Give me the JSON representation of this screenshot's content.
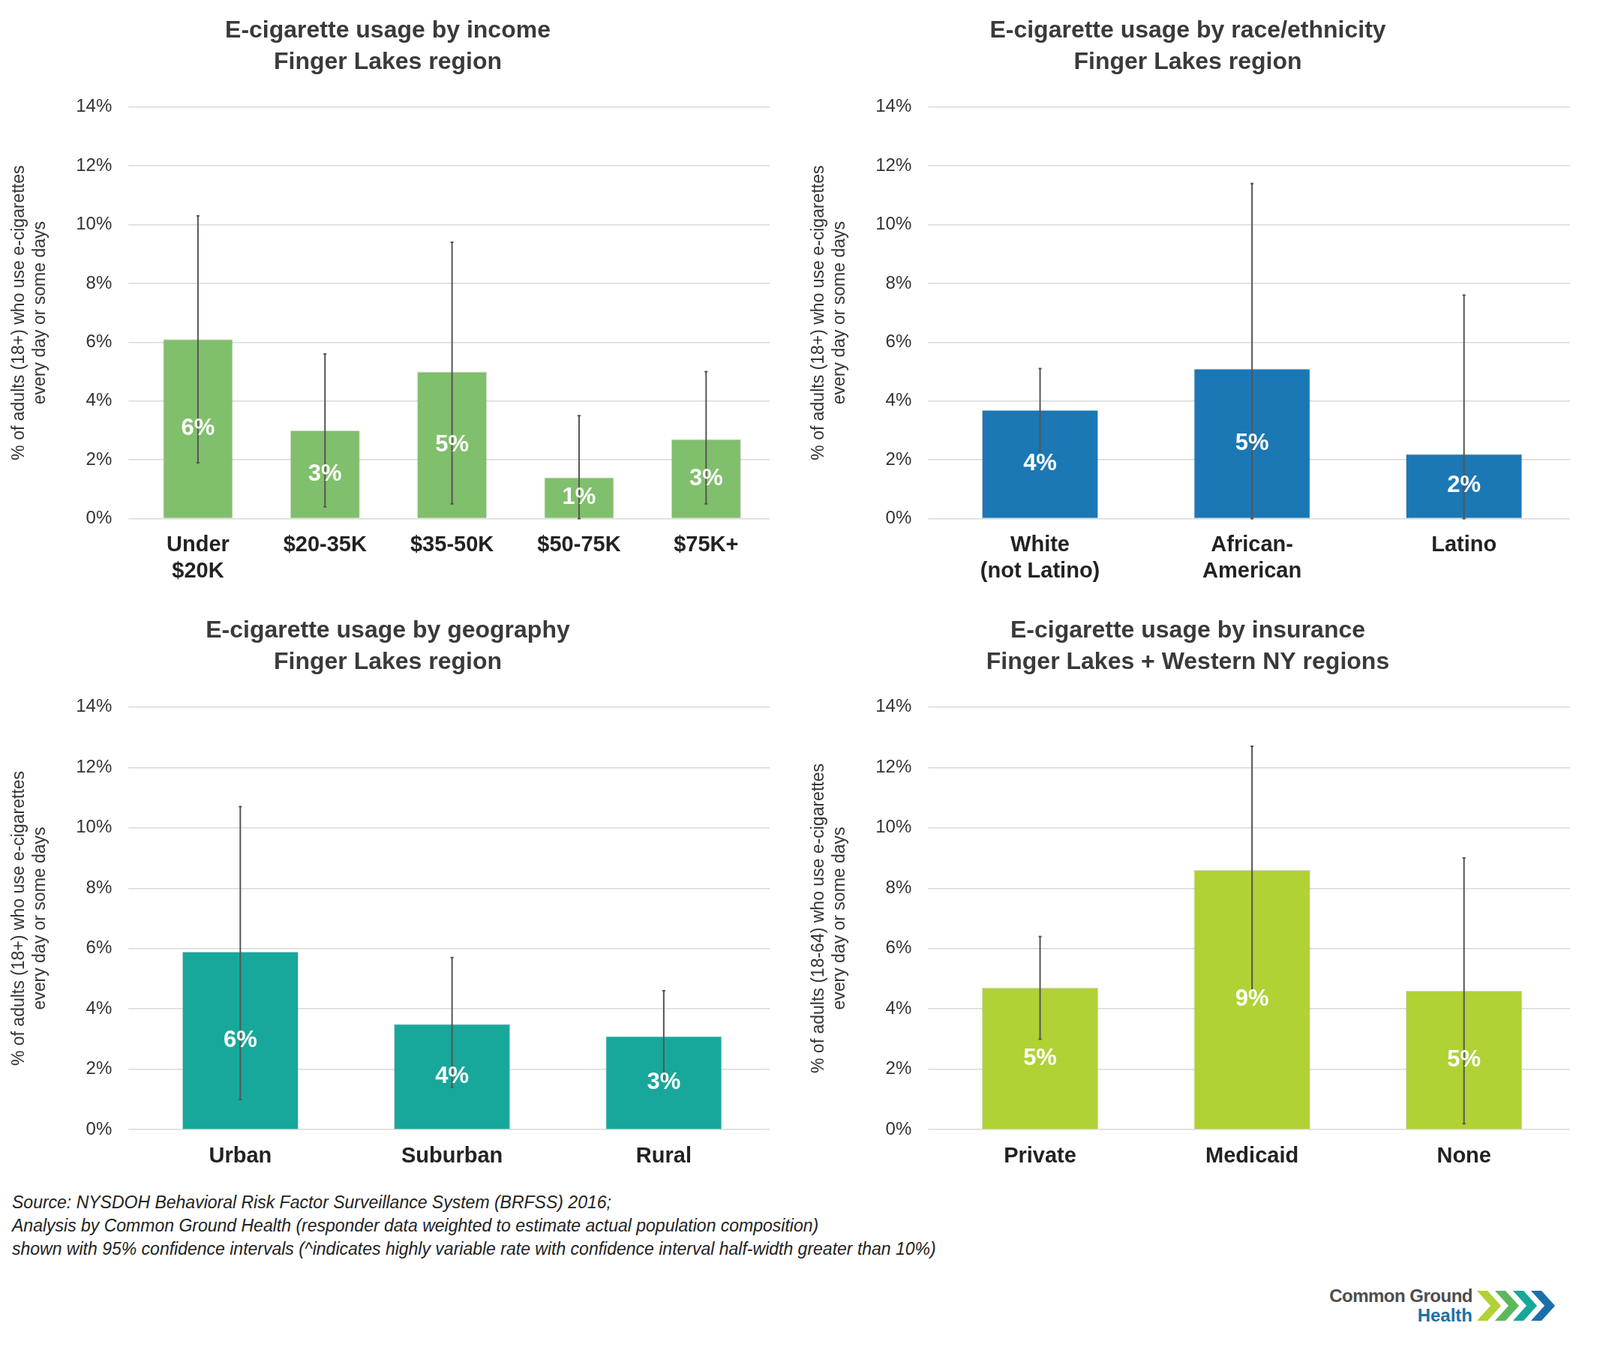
{
  "chart_data": [
    {
      "type": "bar",
      "title": "E-cigarette usage by income",
      "subtitle": "Finger Lakes region",
      "categories": [
        [
          "Under",
          "$20K"
        ],
        "$20-35K",
        "$35-50K",
        "$50-75K",
        "$75K+"
      ],
      "values": [
        6.1,
        3.0,
        5.0,
        1.4,
        2.7
      ],
      "value_labels": [
        "6%",
        "3%",
        "5%",
        "1%",
        "3%"
      ],
      "error_low": [
        1.9,
        0.4,
        0.5,
        0.0,
        0.5
      ],
      "error_high": [
        10.3,
        5.6,
        9.4,
        3.5,
        5.0
      ],
      "color": "#80bf6b",
      "y_label": [
        "% of adults (18+) who use e-cigarettes",
        "every day or some days"
      ],
      "ylim": [
        0,
        14
      ],
      "yticks": [
        {
          "value": 0,
          "label": "0%"
        },
        {
          "value": 2,
          "label": "2%"
        },
        {
          "value": 4,
          "label": "4%"
        },
        {
          "value": 6,
          "label": "6%"
        },
        {
          "value": 8,
          "label": "8%"
        },
        {
          "value": 10,
          "label": "10%"
        },
        {
          "value": 12,
          "label": "12%"
        },
        {
          "value": 14,
          "label": "14%"
        }
      ],
      "grid": true,
      "data_labels": true
    },
    {
      "type": "bar",
      "title": "E-cigarette usage by race/ethnicity",
      "subtitle": "Finger Lakes region",
      "categories": [
        [
          "White",
          "(not Latino)"
        ],
        [
          "African-",
          "American"
        ],
        "Latino"
      ],
      "values": [
        3.7,
        5.1,
        2.2
      ],
      "value_labels": [
        "4%",
        "5%",
        "2%"
      ],
      "error_low": [
        2.3,
        0.0,
        0.0
      ],
      "error_high": [
        5.1,
        11.4,
        7.6
      ],
      "color": "#1b78b5",
      "y_label": [
        "% of adults (18+) who use e-cigarettes",
        "every day or some days"
      ],
      "ylim": [
        0,
        14
      ],
      "yticks": [
        {
          "value": 0,
          "label": "0%"
        },
        {
          "value": 2,
          "label": "2%"
        },
        {
          "value": 4,
          "label": "4%"
        },
        {
          "value": 6,
          "label": "6%"
        },
        {
          "value": 8,
          "label": "8%"
        },
        {
          "value": 10,
          "label": "10%"
        },
        {
          "value": 12,
          "label": "12%"
        },
        {
          "value": 14,
          "label": "14%"
        }
      ],
      "grid": true,
      "data_labels": true
    },
    {
      "type": "bar",
      "title": "E-cigarette usage by geography",
      "subtitle": "Finger Lakes region",
      "categories": [
        "Urban",
        "Suburban",
        "Rural"
      ],
      "values": [
        5.9,
        3.5,
        3.1
      ],
      "value_labels": [
        "6%",
        "4%",
        "3%"
      ],
      "error_low": [
        1.0,
        1.4,
        1.6
      ],
      "error_high": [
        10.7,
        5.7,
        4.6
      ],
      "color": "#17a89b",
      "y_label": [
        "% of adults (18+) who use e-cigarettes",
        "every day or some days"
      ],
      "ylim": [
        0,
        14
      ],
      "yticks": [
        {
          "value": 0,
          "label": "0%"
        },
        {
          "value": 2,
          "label": "2%"
        },
        {
          "value": 4,
          "label": "4%"
        },
        {
          "value": 6,
          "label": "6%"
        },
        {
          "value": 8,
          "label": "8%"
        },
        {
          "value": 10,
          "label": "10%"
        },
        {
          "value": 12,
          "label": "12%"
        },
        {
          "value": 14,
          "label": "14%"
        }
      ],
      "grid": true,
      "data_labels": true
    },
    {
      "type": "bar",
      "title": "E-cigarette usage by insurance",
      "subtitle": "Finger Lakes + Western NY regions",
      "categories": [
        "Private",
        "Medicaid",
        "None"
      ],
      "values": [
        4.7,
        8.6,
        4.6
      ],
      "value_labels": [
        "5%",
        "9%",
        "5%"
      ],
      "error_low": [
        3.0,
        4.6,
        0.2
      ],
      "error_high": [
        6.4,
        12.7,
        9.0
      ],
      "color": "#b0d235",
      "y_label": [
        "% of adults (18-64) who use e-cigarettes",
        "every day or some days"
      ],
      "ylim": [
        0,
        14
      ],
      "yticks": [
        {
          "value": 0,
          "label": "0%"
        },
        {
          "value": 2,
          "label": "2%"
        },
        {
          "value": 4,
          "label": "4%"
        },
        {
          "value": 6,
          "label": "6%"
        },
        {
          "value": 8,
          "label": "8%"
        },
        {
          "value": 10,
          "label": "10%"
        },
        {
          "value": 12,
          "label": "12%"
        },
        {
          "value": 14,
          "label": "14%"
        }
      ],
      "grid": true,
      "data_labels": true
    }
  ],
  "source": [
    "Source: NYSDOH Behavioral Risk Factor Surveillance System (BRFSS) 2016;",
    "Analysis by Common Ground Health (responder data weighted to estimate actual population composition)",
    "shown with 95% confidence intervals (^indicates highly variable rate with confidence interval half-width greater than 10%)"
  ],
  "logo": [
    "Common Ground",
    "Health"
  ]
}
